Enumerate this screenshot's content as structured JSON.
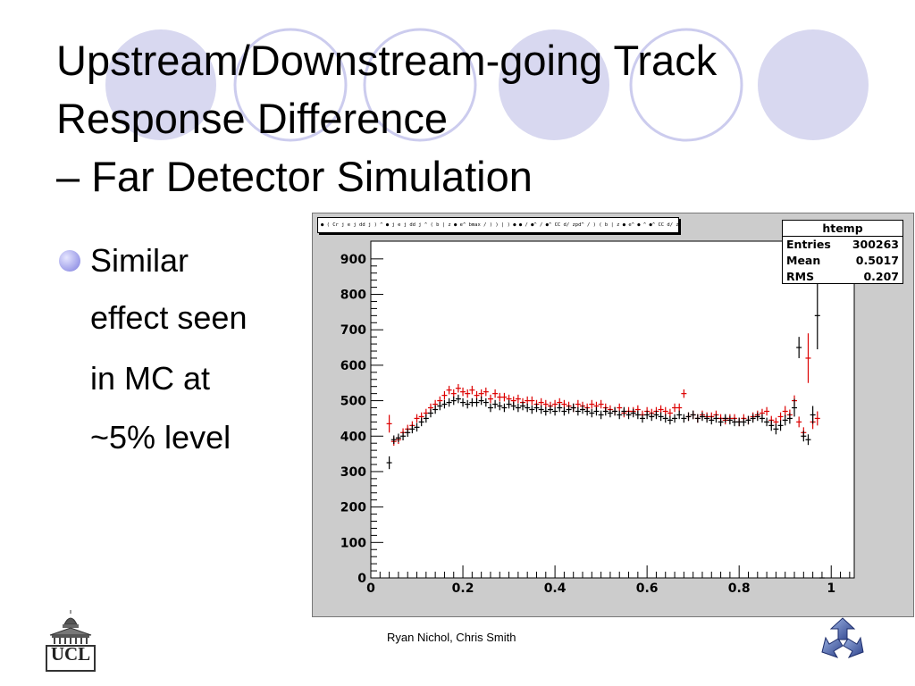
{
  "title_lines": [
    "Upstream/Downstream-going Track",
    "Response Difference",
    "– Far Detector Simulation"
  ],
  "bullet_lines": [
    "Similar",
    "effect seen",
    "in MC at",
    "~5% level"
  ],
  "footer": "Ryan Nichol, Chris Smith",
  "logos": {
    "left": "UCL",
    "right_icon": "minos-logo-icon"
  },
  "colors": {
    "accent": "#d8d8f0",
    "accent_ring": "#ccccee",
    "series_red": "#dd0000",
    "series_black": "#000000",
    "frame_bg": "#cccccc"
  },
  "stats": {
    "title": "htemp",
    "rows": [
      {
        "label": "Entries",
        "value": "300263"
      },
      {
        "label": "Mean",
        "value": "0.5017"
      },
      {
        "label": "RMS",
        "value": "0.207"
      }
    ]
  },
  "header_text": "● ( Cr j e j dd j ) ^ ● j e j dd j ^ ( b | z ● e^ bmax / ) ) | ) ● ● / ●^ / ●^ CC d/ zpd^ / ) ( b | z ● e^ ● ^ ●^ CC d/ zpd^ ) ( / CC d/ zpd^ / ) ( / CC d/ zpd^ / ) ( b | z ● e^ ● ^ ●^ CC bmax / ) ( / / ●",
  "chart_data": {
    "type": "scatter",
    "title": "",
    "xlabel": "",
    "ylabel": "",
    "xlim": [
      0,
      1.05
    ],
    "ylim": [
      0,
      950
    ],
    "xticks": [
      0,
      0.2,
      0.4,
      0.6,
      0.8,
      1
    ],
    "xtick_labels": [
      "0",
      "0.2",
      "0.4",
      "0.6",
      "0.8",
      "1"
    ],
    "yticks": [
      0,
      100,
      200,
      300,
      400,
      500,
      600,
      700,
      800,
      900
    ],
    "ytick_labels": [
      "0",
      "100",
      "200",
      "300",
      "400",
      "500",
      "600",
      "700",
      "800",
      "900"
    ],
    "grid": false,
    "legend": "none",
    "series": [
      {
        "color": "#dd0000",
        "x": [
          0.04,
          0.05,
          0.06,
          0.07,
          0.08,
          0.09,
          0.1,
          0.11,
          0.12,
          0.13,
          0.14,
          0.15,
          0.16,
          0.17,
          0.18,
          0.19,
          0.2,
          0.21,
          0.22,
          0.23,
          0.24,
          0.25,
          0.26,
          0.27,
          0.28,
          0.29,
          0.3,
          0.31,
          0.32,
          0.33,
          0.34,
          0.35,
          0.36,
          0.37,
          0.38,
          0.39,
          0.4,
          0.41,
          0.42,
          0.43,
          0.44,
          0.45,
          0.46,
          0.47,
          0.48,
          0.49,
          0.5,
          0.51,
          0.52,
          0.53,
          0.54,
          0.55,
          0.56,
          0.57,
          0.58,
          0.59,
          0.6,
          0.61,
          0.62,
          0.63,
          0.64,
          0.65,
          0.66,
          0.67,
          0.68,
          0.69,
          0.7,
          0.71,
          0.72,
          0.73,
          0.74,
          0.75,
          0.76,
          0.77,
          0.78,
          0.79,
          0.8,
          0.81,
          0.82,
          0.83,
          0.84,
          0.85,
          0.86,
          0.87,
          0.88,
          0.89,
          0.9,
          0.91,
          0.92,
          0.93,
          0.94,
          0.95,
          0.96,
          0.97
        ],
        "y": [
          435,
          385,
          390,
          410,
          420,
          430,
          450,
          455,
          465,
          480,
          490,
          500,
          515,
          530,
          520,
          535,
          525,
          520,
          530,
          515,
          520,
          525,
          505,
          520,
          510,
          510,
          505,
          500,
          505,
          495,
          500,
          500,
          490,
          495,
          490,
          485,
          490,
          495,
          490,
          485,
          480,
          490,
          485,
          480,
          490,
          485,
          490,
          480,
          475,
          470,
          480,
          465,
          470,
          470,
          475,
          460,
          470,
          465,
          470,
          475,
          470,
          465,
          480,
          480,
          520,
          455,
          460,
          450,
          460,
          455,
          455,
          460,
          450,
          445,
          450,
          450,
          440,
          450,
          445,
          455,
          460,
          465,
          470,
          445,
          440,
          455,
          470,
          460,
          500,
          440,
          410,
          620,
          440,
          450
        ],
        "err": [
          25,
          12,
          12,
          12,
          12,
          12,
          12,
          12,
          12,
          12,
          12,
          12,
          12,
          12,
          12,
          12,
          12,
          12,
          12,
          12,
          12,
          12,
          12,
          12,
          12,
          12,
          12,
          12,
          12,
          12,
          12,
          12,
          12,
          12,
          12,
          12,
          12,
          12,
          12,
          12,
          12,
          12,
          12,
          12,
          12,
          12,
          12,
          12,
          12,
          12,
          12,
          12,
          12,
          12,
          12,
          12,
          12,
          12,
          12,
          12,
          12,
          12,
          12,
          12,
          12,
          12,
          12,
          12,
          12,
          12,
          12,
          12,
          12,
          12,
          12,
          12,
          12,
          12,
          12,
          12,
          12,
          12,
          12,
          12,
          12,
          12,
          15,
          15,
          15,
          15,
          15,
          70,
          20,
          20
        ]
      },
      {
        "color": "#000000",
        "x": [
          0.04,
          0.05,
          0.06,
          0.07,
          0.08,
          0.09,
          0.1,
          0.11,
          0.12,
          0.13,
          0.14,
          0.15,
          0.16,
          0.17,
          0.18,
          0.19,
          0.2,
          0.21,
          0.22,
          0.23,
          0.24,
          0.25,
          0.26,
          0.27,
          0.28,
          0.29,
          0.3,
          0.31,
          0.32,
          0.33,
          0.34,
          0.35,
          0.36,
          0.37,
          0.38,
          0.39,
          0.4,
          0.41,
          0.42,
          0.43,
          0.44,
          0.45,
          0.46,
          0.47,
          0.48,
          0.49,
          0.5,
          0.51,
          0.52,
          0.53,
          0.54,
          0.55,
          0.56,
          0.57,
          0.58,
          0.59,
          0.6,
          0.61,
          0.62,
          0.63,
          0.64,
          0.65,
          0.66,
          0.67,
          0.68,
          0.69,
          0.7,
          0.71,
          0.72,
          0.73,
          0.74,
          0.75,
          0.76,
          0.77,
          0.78,
          0.79,
          0.8,
          0.81,
          0.82,
          0.83,
          0.84,
          0.85,
          0.86,
          0.87,
          0.88,
          0.89,
          0.9,
          0.91,
          0.92,
          0.93,
          0.94,
          0.95,
          0.96,
          0.97,
          0.98
        ],
        "y": [
          325,
          390,
          395,
          400,
          410,
          420,
          425,
          440,
          450,
          465,
          475,
          485,
          490,
          495,
          500,
          505,
          495,
          490,
          495,
          495,
          500,
          495,
          480,
          490,
          485,
          480,
          490,
          485,
          480,
          485,
          480,
          475,
          480,
          475,
          470,
          475,
          470,
          480,
          470,
          475,
          480,
          470,
          475,
          470,
          465,
          470,
          460,
          470,
          465,
          470,
          460,
          470,
          460,
          465,
          460,
          450,
          460,
          455,
          460,
          455,
          450,
          445,
          450,
          460,
          450,
          455,
          460,
          450,
          455,
          450,
          445,
          450,
          440,
          450,
          445,
          440,
          440,
          440,
          445,
          450,
          455,
          450,
          440,
          430,
          420,
          430,
          445,
          450,
          480,
          650,
          400,
          390,
          460,
          740,
          0
        ],
        "err": [
          18,
          12,
          12,
          12,
          12,
          12,
          12,
          12,
          12,
          12,
          12,
          12,
          12,
          12,
          12,
          12,
          12,
          12,
          12,
          12,
          12,
          12,
          12,
          12,
          12,
          12,
          12,
          12,
          12,
          12,
          12,
          12,
          12,
          12,
          12,
          12,
          12,
          12,
          12,
          12,
          12,
          12,
          12,
          12,
          12,
          12,
          12,
          12,
          12,
          12,
          12,
          12,
          12,
          12,
          12,
          12,
          12,
          12,
          12,
          12,
          12,
          12,
          12,
          12,
          12,
          12,
          12,
          12,
          12,
          12,
          12,
          12,
          12,
          12,
          12,
          12,
          12,
          12,
          12,
          12,
          12,
          12,
          12,
          15,
          15,
          15,
          15,
          15,
          25,
          30,
          15,
          15,
          25,
          95,
          0
        ]
      }
    ]
  }
}
